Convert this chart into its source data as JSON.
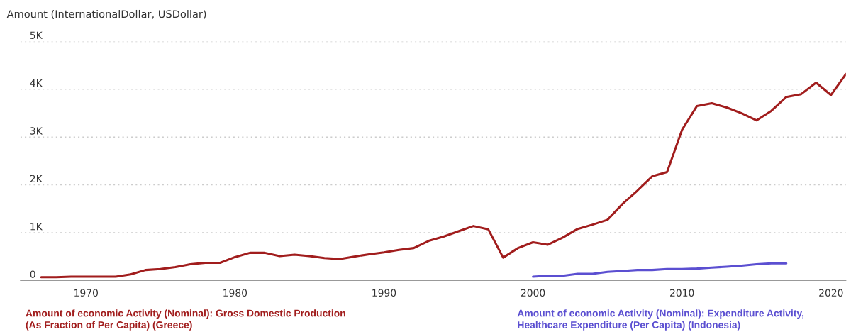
{
  "chart_data": {
    "type": "line",
    "ylabel": "Amount (InternationalDollar, USDollar)",
    "xlim": [
      1965.6,
      2021
    ],
    "xticks": [
      1970,
      1980,
      1990,
      2000,
      2010,
      2020
    ],
    "ylim": [
      0,
      5000
    ],
    "yticks": [
      {
        "value": 0,
        "label": "0"
      },
      {
        "value": 1000,
        "label": "1K"
      },
      {
        "value": 2000,
        "label": "2K"
      },
      {
        "value": 3000,
        "label": "3K"
      },
      {
        "value": 4000,
        "label": "4K"
      },
      {
        "value": 5000,
        "label": "5K"
      }
    ],
    "grid": "y",
    "legend": "bottom",
    "line_style": "solid",
    "marker": "none",
    "series": [
      {
        "name": "Amount of economic Activity (Nominal): Gross Domestic Production\n(As Fraction of Per Capita) (Greece)",
        "color": "#a11d1d",
        "x": [
          1967,
          1968,
          1969,
          1970,
          1971,
          1972,
          1973,
          1974,
          1975,
          1976,
          1977,
          1978,
          1979,
          1980,
          1981,
          1982,
          1983,
          1984,
          1985,
          1986,
          1987,
          1988,
          1989,
          1990,
          1991,
          1992,
          1993,
          1994,
          1995,
          1996,
          1997,
          1998,
          1999,
          2000,
          2001,
          2002,
          2003,
          2004,
          2005,
          2006,
          2007,
          2008,
          2009,
          2010,
          2011,
          2012,
          2013,
          2014,
          2015,
          2016,
          2017,
          2018,
          2019,
          2020,
          2021
        ],
        "values": [
          70,
          70,
          80,
          80,
          80,
          80,
          130,
          220,
          240,
          280,
          340,
          370,
          370,
          490,
          580,
          580,
          510,
          540,
          510,
          470,
          450,
          500,
          550,
          590,
          640,
          680,
          830,
          920,
          1030,
          1140,
          1070,
          480,
          680,
          800,
          750,
          900,
          1080,
          1170,
          1270,
          1600,
          1880,
          2180,
          2270,
          3150,
          3650,
          3710,
          3620,
          3500,
          3350,
          3550,
          3840,
          3900,
          4140,
          3880,
          4320
        ]
      },
      {
        "name": "Amount of economic Activity (Nominal): Expenditure Activity,\nHealthcare Expenditure (Per Capita) (Indonesia)",
        "color": "#5b4fd1",
        "x": [
          2000,
          2001,
          2002,
          2003,
          2004,
          2005,
          2006,
          2007,
          2008,
          2009,
          2010,
          2011,
          2012,
          2013,
          2014,
          2015,
          2016,
          2017
        ],
        "values": [
          80,
          100,
          100,
          140,
          140,
          180,
          200,
          220,
          220,
          240,
          240,
          250,
          270,
          290,
          310,
          340,
          360,
          360
        ]
      }
    ]
  }
}
